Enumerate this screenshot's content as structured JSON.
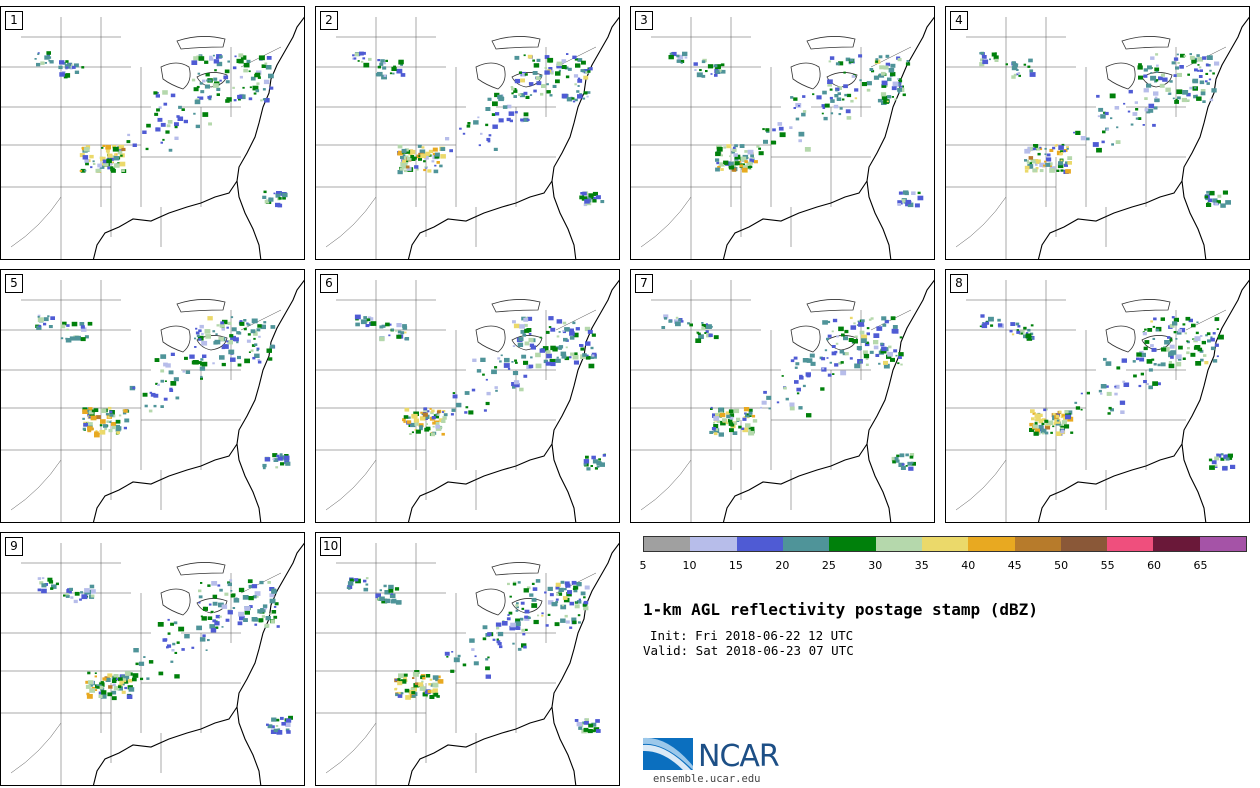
{
  "panels": [
    {
      "label": "1"
    },
    {
      "label": "2"
    },
    {
      "label": "3"
    },
    {
      "label": "4"
    },
    {
      "label": "5"
    },
    {
      "label": "6"
    },
    {
      "label": "7"
    },
    {
      "label": "8"
    },
    {
      "label": "9"
    },
    {
      "label": "10"
    }
  ],
  "colorbar": {
    "colors": [
      "#a0a0a0",
      "#b7bdea",
      "#4f5bd4",
      "#4f9499",
      "#00800b",
      "#b5d8ac",
      "#ebd96a",
      "#e8a921",
      "#b77b2b",
      "#8a5838",
      "#ef4f7d",
      "#6a1839",
      "#a553a7"
    ],
    "labels": [
      "5",
      "10",
      "15",
      "20",
      "25",
      "30",
      "35",
      "40",
      "45",
      "50",
      "55",
      "60",
      "65"
    ]
  },
  "title": "1-km AGL reflectivity postage stamp (dBZ)",
  "init_text": "Init: Fri 2018-06-22 12 UTC",
  "valid_text": "Valid: Sat 2018-06-23 07 UTC",
  "logo": {
    "name": "NCAR",
    "url": "ensemble.ucar.edu"
  }
}
